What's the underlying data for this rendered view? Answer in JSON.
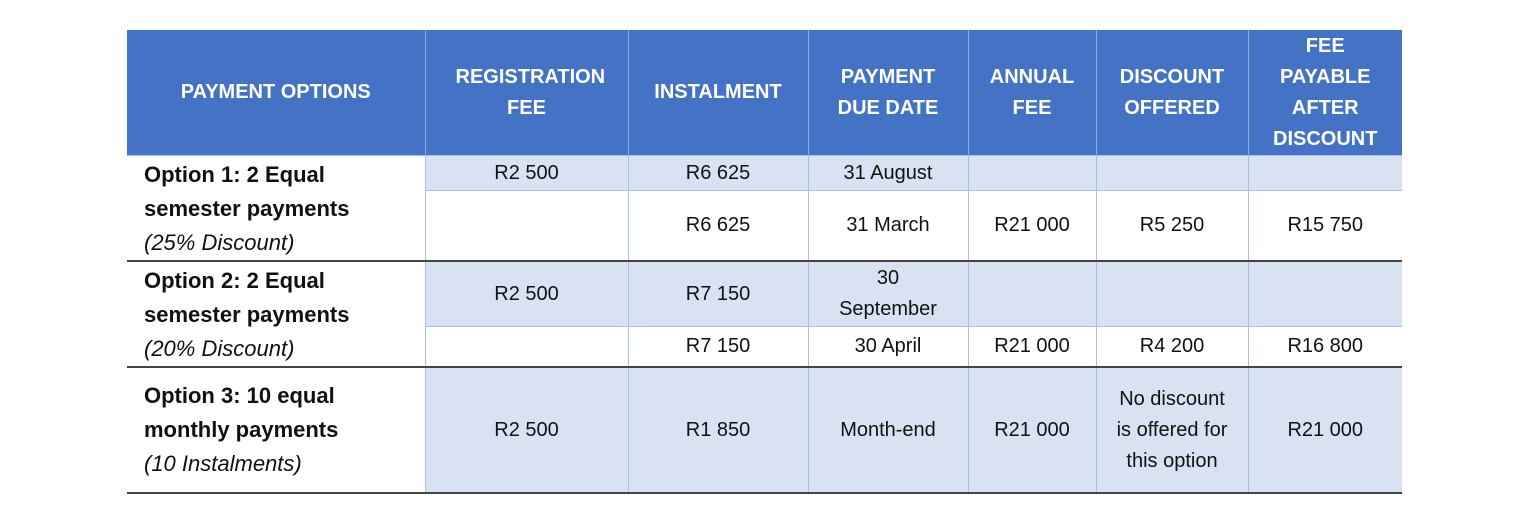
{
  "colors": {
    "header": "#4472c4",
    "shaded_row": "#d9e2f3",
    "grid": "#a9c0e6"
  },
  "headers": [
    "PAYMENT OPTIONS",
    "REGISTRATION FEE",
    "INSTALMENT",
    "PAYMENT DUE DATE",
    "ANNUAL FEE",
    "DISCOUNT OFFERED",
    "FEE PAYABLE AFTER DISCOUNT"
  ],
  "options": [
    {
      "title1": "Option 1: 2 Equal",
      "title2": "semester payments",
      "note": "(25% Discount)",
      "rows": [
        [
          "R2 500",
          "R6 625",
          "31 August",
          "",
          "",
          ""
        ],
        [
          "",
          "R6 625",
          "31 March",
          "R21 000",
          "R5 250",
          "R15 750"
        ]
      ]
    },
    {
      "title1": "Option 2: 2 Equal",
      "title2": "semester payments",
      "note": "(20% Discount)",
      "rows": [
        [
          "R2 500",
          "R7 150",
          "30 September",
          "",
          "",
          ""
        ],
        [
          "",
          "R7 150",
          "30 April",
          "R21 000",
          "R4 200",
          "R16 800"
        ]
      ]
    },
    {
      "title1": "Option 3: 10 equal",
      "title2": "monthly payments",
      "note": "(10 Instalments)",
      "rows": [
        [
          "R2 500",
          "R1 850",
          "Month-end",
          "R21 000",
          "No discount is offered for this option",
          "R21 000"
        ]
      ]
    }
  ]
}
